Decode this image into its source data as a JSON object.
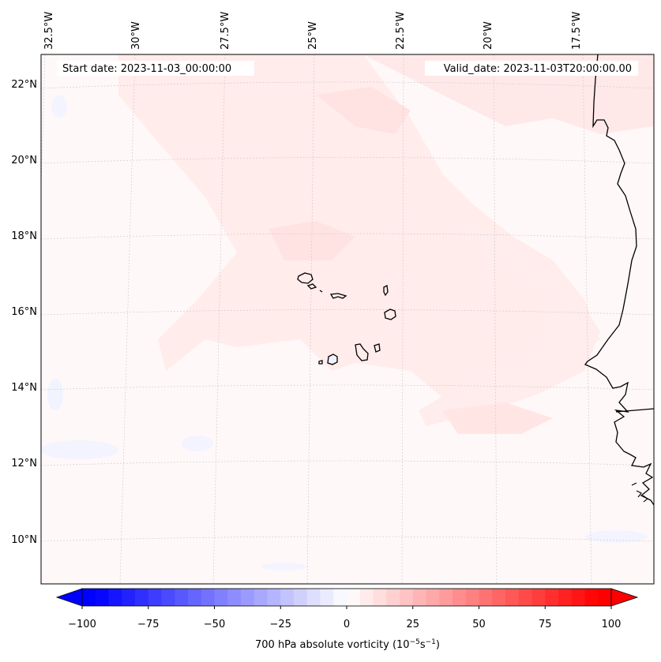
{
  "header": {
    "start_date": "Start date: 2023-11-03_00:00:00",
    "valid_date": "Valid_date: 2023-11-03T20:00:00.00"
  },
  "map": {
    "variable": "700 hPa absolute vorticity",
    "lon_labels": [
      "32.5°W",
      "30°W",
      "27.5°W",
      "25°W",
      "22.5°W",
      "20°W",
      "17.5°W"
    ],
    "lat_labels": [
      "22°N",
      "20°N",
      "18°N",
      "16°N",
      "14°N",
      "12°N",
      "10°N"
    ],
    "features": [
      "Cape Verde islands",
      "West African coastline"
    ]
  },
  "colorbar": {
    "label_text": "700 hPa absolute vorticity (10",
    "label_exp1": "−5",
    "label_mid": "s",
    "label_exp2": "−1",
    "label_close": ")",
    "ticks": [
      "−100",
      "−75",
      "−50",
      "−25",
      "0",
      "25",
      "50",
      "75",
      "100"
    ],
    "min": -100,
    "max": 100,
    "step": 5,
    "colors": {
      "negative": "#0000ff",
      "zero": "#ffffff",
      "positive": "#ff0000"
    }
  }
}
